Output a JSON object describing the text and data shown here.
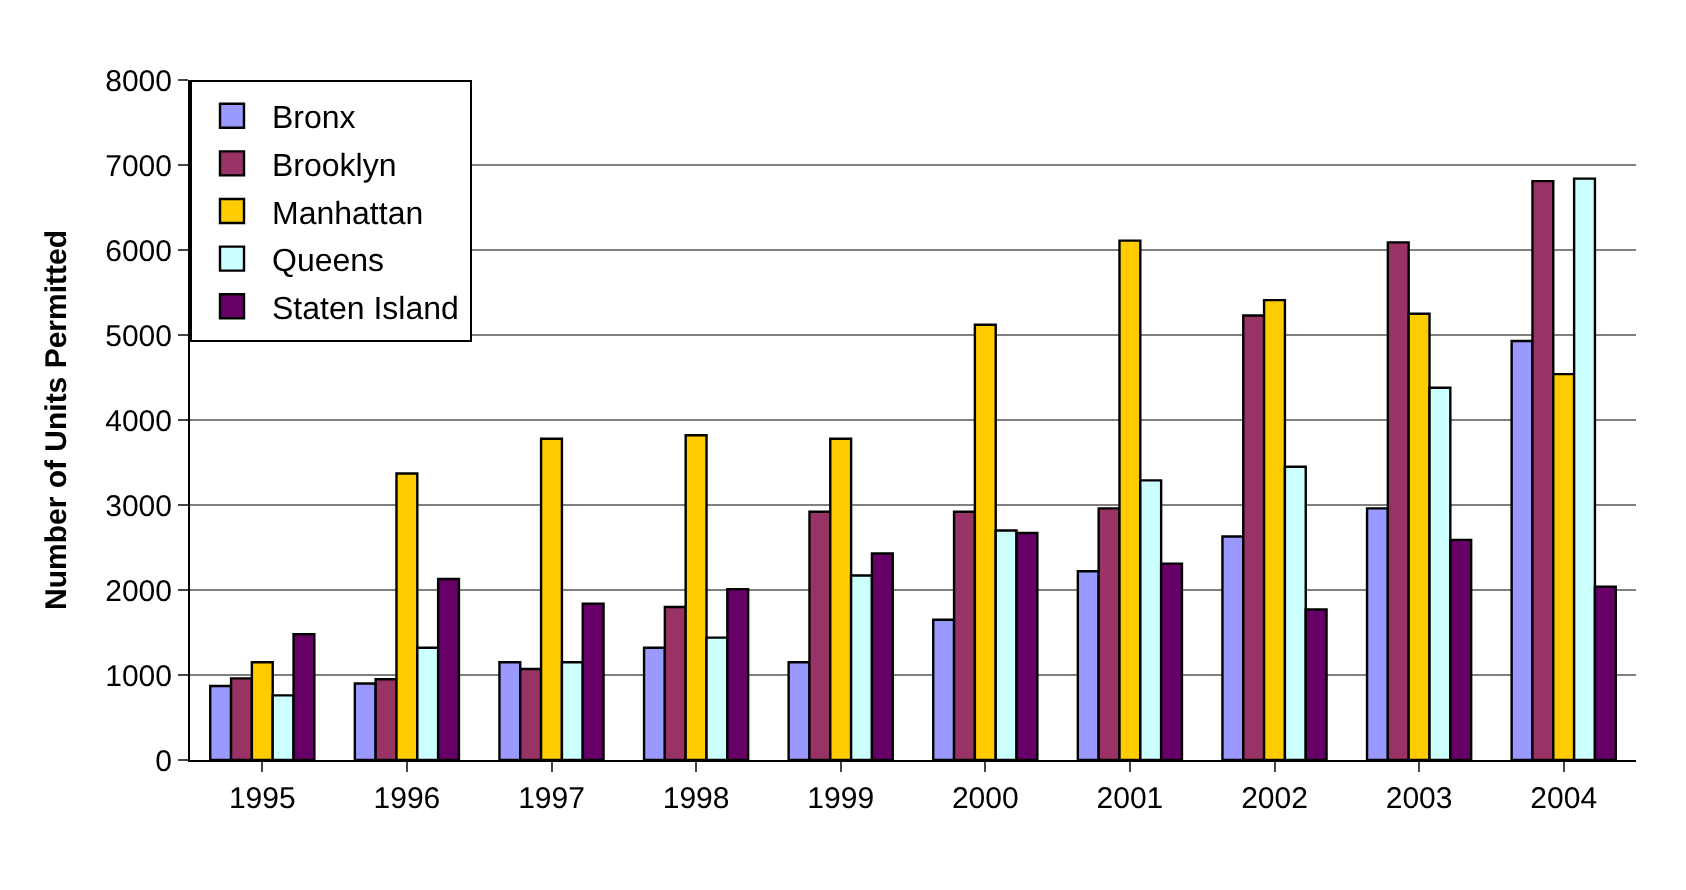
{
  "chart_data": {
    "type": "bar",
    "ylabel": "Number of Units Permitted",
    "categories": [
      "1995",
      "1996",
      "1997",
      "1998",
      "1999",
      "2000",
      "2001",
      "2002",
      "2003",
      "2004"
    ],
    "series": [
      {
        "name": "Bronx",
        "color": "#9999ff",
        "values": [
          870,
          900,
          1150,
          1320,
          1150,
          1650,
          2220,
          2630,
          2960,
          4930
        ]
      },
      {
        "name": "Brooklyn",
        "color": "#993366",
        "values": [
          960,
          950,
          1070,
          1800,
          2920,
          2920,
          2960,
          5230,
          6090,
          6810
        ]
      },
      {
        "name": "Manhattan",
        "color": "#ffcc00",
        "values": [
          1150,
          3370,
          3780,
          3820,
          3780,
          5120,
          6110,
          5410,
          5250,
          4540
        ]
      },
      {
        "name": "Queens",
        "color": "#ccffff",
        "values": [
          760,
          1320,
          1150,
          1440,
          2170,
          2700,
          3290,
          3450,
          4380,
          6840
        ]
      },
      {
        "name": "Staten Island",
        "color": "#660066",
        "values": [
          1480,
          2130,
          1840,
          2010,
          2430,
          2670,
          2310,
          1770,
          2590,
          2040
        ]
      }
    ],
    "ylim": [
      0,
      8000
    ],
    "yticks": [
      0,
      1000,
      2000,
      3000,
      4000,
      5000,
      6000,
      7000,
      8000
    ],
    "grid": "y",
    "legend": "top left"
  }
}
